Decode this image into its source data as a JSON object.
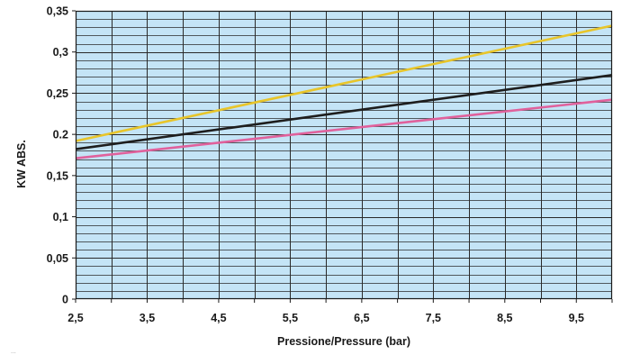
{
  "chart_data": {
    "type": "line",
    "title": "",
    "xlabel": "Pressione/Pressure (bar)",
    "ylabel": "KW ABS.",
    "xlim": [
      2.5,
      10
    ],
    "ylim": [
      0,
      0.35
    ],
    "x_ticks": [
      "2,5",
      "3,5",
      "4,5",
      "5,5",
      "6,5",
      "7,5",
      "8,5",
      "9,5"
    ],
    "x_tick_values": [
      2.5,
      3.5,
      4.5,
      5.5,
      6.5,
      7.5,
      8.5,
      9.5
    ],
    "y_ticks": [
      "0",
      "0,05",
      "0,1",
      "0,15",
      "0.2",
      "0,25",
      "0,3",
      "0,35"
    ],
    "y_tick_values": [
      0,
      0.05,
      0.1,
      0.15,
      0.2,
      0.25,
      0.3,
      0.35
    ],
    "grid": true,
    "background_color": "#c4e4f6",
    "grid_color": "#2a2a2a",
    "series": [
      {
        "color": "#e8c52a",
        "x": [
          2.5,
          10
        ],
        "y": [
          0.192,
          0.332
        ]
      },
      {
        "color": "#1e1e1e",
        "x": [
          2.5,
          10
        ],
        "y": [
          0.182,
          0.272
        ]
      },
      {
        "color": "#e0619c",
        "x": [
          2.5,
          10
        ],
        "y": [
          0.171,
          0.242
        ]
      }
    ]
  },
  "footnote": "..."
}
